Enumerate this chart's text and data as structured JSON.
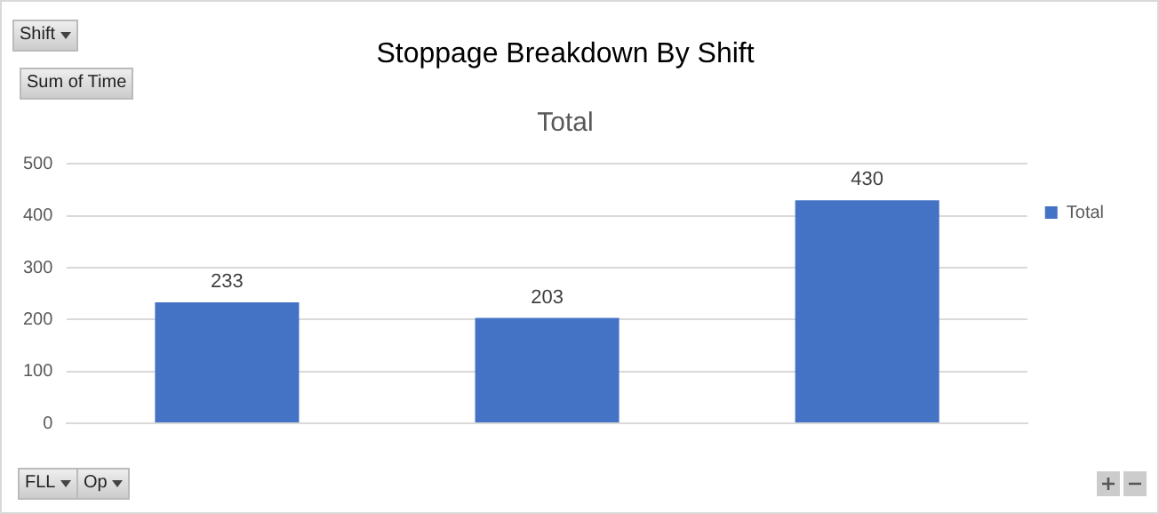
{
  "chart_data": {
    "type": "bar",
    "title": "Stoppage Breakdown By Shift",
    "subtitle": "Total",
    "annotations": [
      "Shift",
      "Sum of Time",
      "FLL",
      "Op"
    ],
    "categories": [
      null,
      null,
      null
    ],
    "series": [
      {
        "name": "Total",
        "color": "#4472c4",
        "values": [
          233,
          203,
          430
        ]
      }
    ],
    "ylim": [
      0,
      500
    ],
    "yticks": [
      0,
      100,
      200,
      300,
      400,
      500
    ],
    "grid": "y",
    "legend": "right",
    "data_labels": true
  }
}
